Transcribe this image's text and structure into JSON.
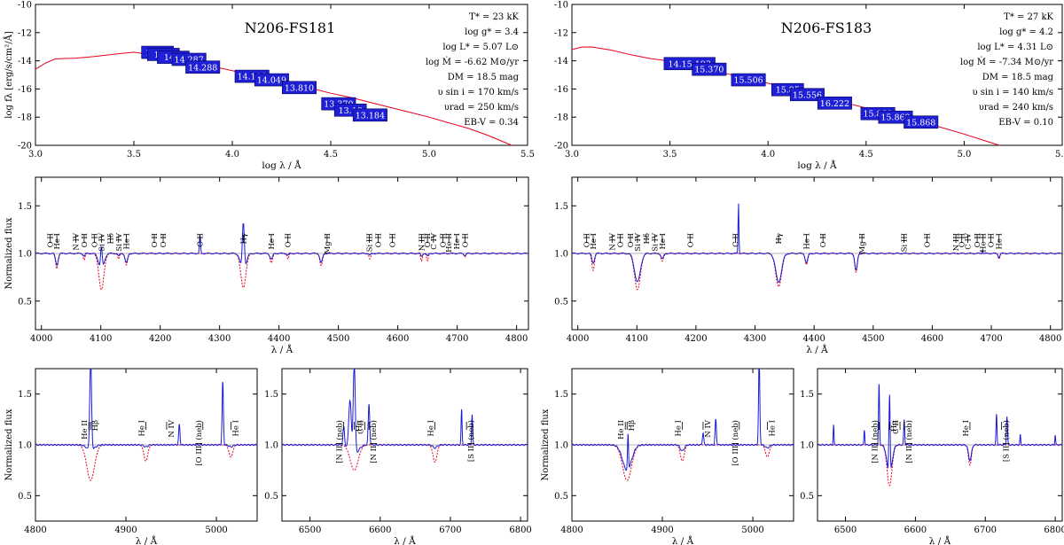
{
  "chart_data": [
    {
      "type": "line",
      "title": "N206-FS181",
      "xlabel": "log λ / Å",
      "ylabel": "log fλ [erg/s/cm²/Å]",
      "xlim": [
        3.0,
        5.5
      ],
      "ylim": [
        -20,
        -10
      ],
      "xticks": [
        "3.0",
        "3.5",
        "4.0",
        "4.5",
        "5.0",
        "5.5"
      ],
      "yticks": [
        "-10",
        "-12",
        "-14",
        "-16",
        "-18",
        "-20"
      ],
      "params": [
        "T* = 23 kK",
        "log g* = 3.4",
        "log L* = 5.07 L⊙",
        "log Ṁ = -6.62 M⊙/yr",
        "DM = 18.5 mag",
        "υ sin i = 170 km/s",
        "υrad = 250 km/s",
        "EB-V = 0.34"
      ],
      "series": [
        {
          "name": "",
          "color": "#e8001c",
          "x": [
            3.0,
            3.05,
            3.1,
            3.15,
            3.2,
            3.3,
            3.4,
            3.5,
            3.6,
            3.7,
            3.8,
            3.9,
            4.0,
            4.1,
            4.2,
            4.3,
            4.4,
            4.5,
            4.6,
            4.7,
            4.8,
            4.9,
            5.0,
            5.1,
            5.2,
            5.3,
            5.42
          ],
          "y": [
            -14.6,
            -14.3,
            -14.0,
            -13.85,
            -13.7,
            -13.55,
            -13.5,
            -13.5,
            -13.6,
            -13.85,
            -14.1,
            -14.4,
            -14.7,
            -15.0,
            -15.3,
            -15.65,
            -15.95,
            -16.3,
            -16.6,
            -16.95,
            -17.3,
            -17.65,
            -18.0,
            -18.4,
            -18.8,
            -19.3,
            -20.0
          ]
        }
      ],
      "photometry": [
        {
          "x": 3.62,
          "y": -13.4,
          "label": "13.14"
        },
        {
          "x": 3.65,
          "y": -13.55,
          "label": "14.4"
        },
        {
          "x": 3.7,
          "y": -13.75,
          "label": "14.2"
        },
        {
          "x": 3.78,
          "y": -13.9,
          "label": "14.287"
        },
        {
          "x": 3.85,
          "y": -14.45,
          "label": "14.288"
        },
        {
          "x": 4.1,
          "y": -15.1,
          "label": "14.108"
        },
        {
          "x": 4.2,
          "y": -15.35,
          "label": "14.049"
        },
        {
          "x": 4.34,
          "y": -15.9,
          "label": "13.810"
        },
        {
          "x": 4.54,
          "y": -17.05,
          "label": "13.370"
        },
        {
          "x": 4.6,
          "y": -17.5,
          "label": "13.18"
        },
        {
          "x": 4.7,
          "y": -17.85,
          "label": "13.184"
        }
      ]
    },
    {
      "type": "line",
      "title": "N206-FS183",
      "xlabel": "log λ / Å",
      "ylabel": "",
      "xlim": [
        3.0,
        5.5
      ],
      "ylim": [
        -20,
        -10
      ],
      "xticks": [
        "3.0",
        "3.5",
        "4.0",
        "4.5",
        "5.0",
        "5.5"
      ],
      "yticks": [
        "-10",
        "-12",
        "-14",
        "-16",
        "-18",
        "-20"
      ],
      "params": [
        "T* = 27 kK",
        "log g* = 4.2",
        "log L* = 4.31 L⊙",
        "log Ṁ = -7.34 M⊙/yr",
        "DM = 18.5 mag",
        "υ sin i = 140 km/s",
        "υrad = 240 km/s",
        "EB-V = 0.10"
      ],
      "series": [
        {
          "name": "",
          "color": "#e8001c",
          "x": [
            3.0,
            3.05,
            3.1,
            3.2,
            3.3,
            3.4,
            3.5,
            3.6,
            3.7,
            3.8,
            3.9,
            4.0,
            4.1,
            4.2,
            4.3,
            4.4,
            4.5,
            4.6,
            4.7,
            4.8,
            4.9,
            5.0,
            5.1,
            5.18
          ],
          "y": [
            -13.2,
            -13.15,
            -13.15,
            -13.25,
            -13.45,
            -13.7,
            -14.0,
            -14.3,
            -14.6,
            -14.95,
            -15.3,
            -15.6,
            -15.95,
            -16.3,
            -16.65,
            -17.0,
            -17.35,
            -17.7,
            -18.05,
            -18.4,
            -18.8,
            -19.2,
            -19.65,
            -20.0
          ]
        }
      ],
      "photometry": [
        {
          "x": 3.6,
          "y": -14.2,
          "label": "14.15.193"
        },
        {
          "x": 3.7,
          "y": -14.6,
          "label": "15.370"
        },
        {
          "x": 3.9,
          "y": -15.35,
          "label": "15.506"
        },
        {
          "x": 4.1,
          "y": -16.05,
          "label": "15.85"
        },
        {
          "x": 4.2,
          "y": -16.4,
          "label": "15.556"
        },
        {
          "x": 4.34,
          "y": -17.0,
          "label": "16.222"
        },
        {
          "x": 4.56,
          "y": -17.75,
          "label": "15.853"
        },
        {
          "x": 4.65,
          "y": -18.0,
          "label": "15.869"
        },
        {
          "x": 4.78,
          "y": -18.35,
          "label": "15.868"
        }
      ]
    },
    {
      "type": "line",
      "xlabel": "λ / Å",
      "ylabel": "Normalized flux",
      "xlim": [
        3990,
        4820
      ],
      "ylim": [
        0.2,
        1.8
      ],
      "xticks": [
        "4000",
        "4100",
        "4200",
        "4300",
        "4400",
        "4500",
        "4600",
        "4700",
        "4800"
      ],
      "yticks": [
        "0.5",
        "1.0",
        "1.5"
      ],
      "lines": [
        {
          "x": 4015,
          "label": "O II"
        },
        {
          "x": 4026,
          "label": "He I"
        },
        {
          "x": 4058,
          "label": "N IV"
        },
        {
          "x": 4072,
          "label": "O II"
        },
        {
          "x": 4089,
          "label": "O II"
        },
        {
          "x": 4101,
          "label": "Si IV"
        },
        {
          "x": 4116,
          "label": "Hδ"
        },
        {
          "x": 4130,
          "label": "Si IV"
        },
        {
          "x": 4143,
          "label": "He I"
        },
        {
          "x": 4190,
          "label": "O II"
        },
        {
          "x": 4205,
          "label": "O II"
        },
        {
          "x": 4267,
          "label": "C II"
        },
        {
          "x": 4340,
          "label": "Hγ"
        },
        {
          "x": 4387,
          "label": "He I"
        },
        {
          "x": 4415,
          "label": "O II"
        },
        {
          "x": 4481,
          "label": "Mg II"
        },
        {
          "x": 4552,
          "label": "Si III"
        },
        {
          "x": 4567,
          "label": "O II"
        },
        {
          "x": 4591,
          "label": "O II"
        },
        {
          "x": 4640,
          "label": "N III"
        },
        {
          "x": 4650,
          "label": "O II"
        },
        {
          "x": 4660,
          "label": "C IV"
        },
        {
          "x": 4676,
          "label": "O II"
        },
        {
          "x": 4686,
          "label": "He II"
        },
        {
          "x": 4699,
          "label": "He I"
        },
        {
          "x": 4713,
          "label": "O II"
        }
      ],
      "absorption": [
        {
          "x": 4026,
          "w": 3,
          "obs": 0.12,
          "mod": 0.16
        },
        {
          "x": 4072,
          "w": 2,
          "obs": 0.03,
          "mod": 0.07
        },
        {
          "x": 4101,
          "w": 6,
          "obs": 0.18,
          "mod": 0.38
        },
        {
          "x": 4130,
          "w": 2,
          "obs": 0.03,
          "mod": 0.06
        },
        {
          "x": 4143,
          "w": 3,
          "obs": 0.1,
          "mod": 0.12
        },
        {
          "x": 4340,
          "w": 6,
          "obs": 0.22,
          "mod": 0.36
        },
        {
          "x": 4387,
          "w": 3,
          "obs": 0.06,
          "mod": 0.1
        },
        {
          "x": 4415,
          "w": 2,
          "obs": 0.02,
          "mod": 0.06
        },
        {
          "x": 4471,
          "w": 3,
          "obs": 0.1,
          "mod": 0.13
        },
        {
          "x": 4553,
          "w": 2,
          "obs": 0.02,
          "mod": 0.06
        },
        {
          "x": 4640,
          "w": 2,
          "obs": 0.03,
          "mod": 0.08
        },
        {
          "x": 4650,
          "w": 2,
          "obs": 0.03,
          "mod": 0.08
        },
        {
          "x": 4713,
          "w": 2,
          "obs": 0.02,
          "mod": 0.04
        }
      ],
      "emission": [
        {
          "x": 4267,
          "w": 1.2,
          "h": 0.2
        },
        {
          "x": 4340,
          "w": 2.5,
          "h": 0.55
        },
        {
          "x": 4101,
          "w": 2,
          "h": 0.25
        }
      ]
    },
    {
      "type": "line",
      "xlabel": "λ / Å",
      "ylabel": "",
      "xlim": [
        3990,
        4820
      ],
      "ylim": [
        0.2,
        1.8
      ],
      "xticks": [
        "4000",
        "4100",
        "4200",
        "4300",
        "4400",
        "4500",
        "4600",
        "4700",
        "4800"
      ],
      "yticks": [
        "0.5",
        "1.0",
        "1.5"
      ],
      "lines": [
        {
          "x": 4015,
          "label": "O II"
        },
        {
          "x": 4026,
          "label": "He I"
        },
        {
          "x": 4058,
          "label": "N IV"
        },
        {
          "x": 4072,
          "label": "O II"
        },
        {
          "x": 4089,
          "label": "O II"
        },
        {
          "x": 4101,
          "label": "Si IV"
        },
        {
          "x": 4116,
          "label": "Hδ"
        },
        {
          "x": 4130,
          "label": "Si IV"
        },
        {
          "x": 4143,
          "label": "He I"
        },
        {
          "x": 4190,
          "label": "O II"
        },
        {
          "x": 4267,
          "label": "C II"
        },
        {
          "x": 4340,
          "label": "Hγ"
        },
        {
          "x": 4387,
          "label": "He I"
        },
        {
          "x": 4415,
          "label": "O II"
        },
        {
          "x": 4481,
          "label": "Mg II"
        },
        {
          "x": 4552,
          "label": "Si III"
        },
        {
          "x": 4591,
          "label": "O II"
        },
        {
          "x": 4640,
          "label": "N III"
        },
        {
          "x": 4650,
          "label": "O II"
        },
        {
          "x": 4660,
          "label": "C IV"
        },
        {
          "x": 4676,
          "label": "O II"
        },
        {
          "x": 4686,
          "label": "He II"
        },
        {
          "x": 4699,
          "label": "O II"
        },
        {
          "x": 4713,
          "label": "He I"
        }
      ],
      "absorption": [
        {
          "x": 4026,
          "w": 3,
          "obs": 0.1,
          "mod": 0.18
        },
        {
          "x": 4101,
          "w": 7,
          "obs": 0.3,
          "mod": 0.38
        },
        {
          "x": 4143,
          "w": 3,
          "obs": 0.06,
          "mod": 0.08
        },
        {
          "x": 4340,
          "w": 7,
          "obs": 0.3,
          "mod": 0.35
        },
        {
          "x": 4387,
          "w": 3,
          "obs": 0.1,
          "mod": 0.12
        },
        {
          "x": 4471,
          "w": 3,
          "obs": 0.18,
          "mod": 0.2
        },
        {
          "x": 4713,
          "w": 2,
          "obs": 0.04,
          "mod": 0.06
        }
      ],
      "emission": [
        {
          "x": 4272,
          "w": 1,
          "h": 0.55
        },
        {
          "x": 4685,
          "w": 1,
          "h": 0.05
        }
      ]
    },
    {
      "type": "line",
      "xlabel": "λ / Å",
      "ylabel": "Normalized flux",
      "xlim": [
        4800,
        5045
      ],
      "ylim": [
        0.25,
        1.75
      ],
      "xticks": [
        "4800",
        "4900",
        "5000"
      ],
      "yticks": [
        "0.5",
        "1.0",
        "1.5"
      ],
      "lines": [
        {
          "x": 4859,
          "label": "He II"
        },
        {
          "x": 4861,
          "label": "Hβ"
        },
        {
          "x": 4922,
          "label": "He I"
        },
        {
          "x": 4945,
          "label": "N IV"
        },
        {
          "x": 4985,
          "label": "[O III] (neb)"
        },
        {
          "x": 5016,
          "label": "He I"
        }
      ],
      "absorption": [
        {
          "x": 4861,
          "w": 6,
          "obs": 0.05,
          "mod": 0.35
        },
        {
          "x": 4922,
          "w": 3,
          "obs": 0.02,
          "mod": 0.16
        },
        {
          "x": 5016,
          "w": 3,
          "obs": 0.02,
          "mod": 0.12
        }
      ],
      "emission": [
        {
          "x": 4861,
          "w": 1.4,
          "h": 0.9
        },
        {
          "x": 4959,
          "w": 1,
          "h": 0.2
        },
        {
          "x": 5007,
          "w": 1,
          "h": 0.62
        }
      ]
    },
    {
      "type": "line",
      "xlabel": "λ / Å",
      "ylabel": "",
      "xlim": [
        6460,
        6810
      ],
      "ylim": [
        0.25,
        1.75
      ],
      "xticks": [
        "6500",
        "6600",
        "6700",
        "6800"
      ],
      "yticks": [
        "0.5",
        "1.0",
        "1.5"
      ],
      "lines": [
        {
          "x": 6548,
          "label": "[N II] (neb)"
        },
        {
          "x": 6563,
          "label": "Hα"
        },
        {
          "x": 6578,
          "label": "C II"
        },
        {
          "x": 6584,
          "label": "[N II] (neb)"
        },
        {
          "x": 6678,
          "label": "He I"
        },
        {
          "x": 6723,
          "label": "[S II] (neb)"
        }
      ],
      "absorption": [
        {
          "x": 6563,
          "w": 8,
          "obs": 0.1,
          "mod": 0.25
        },
        {
          "x": 6678,
          "w": 4,
          "obs": 0.03,
          "mod": 0.17
        }
      ],
      "emission": [
        {
          "x": 6548,
          "w": 1.5,
          "h": 0.18
        },
        {
          "x": 6557,
          "w": 2.5,
          "h": 0.5
        },
        {
          "x": 6563,
          "w": 2,
          "h": 0.9
        },
        {
          "x": 6584,
          "w": 1.5,
          "h": 0.4
        },
        {
          "x": 6716,
          "w": 1,
          "h": 0.35
        },
        {
          "x": 6731,
          "w": 1,
          "h": 0.3
        }
      ]
    },
    {
      "type": "line",
      "xlabel": "λ / Å",
      "ylabel": "Normalized flux",
      "xlim": [
        4800,
        5045
      ],
      "ylim": [
        0.25,
        1.75
      ],
      "xticks": [
        "4800",
        "4900",
        "5000"
      ],
      "yticks": [
        "0.5",
        "1.0",
        "1.5"
      ],
      "lines": [
        {
          "x": 4859,
          "label": "He II"
        },
        {
          "x": 4861,
          "label": "Hβ"
        },
        {
          "x": 4922,
          "label": "He I"
        },
        {
          "x": 4945,
          "label": "N IV"
        },
        {
          "x": 4985,
          "label": "[O III] (neb)"
        },
        {
          "x": 5016,
          "label": "He I"
        }
      ],
      "absorption": [
        {
          "x": 4861,
          "w": 7,
          "obs": 0.25,
          "mod": 0.35
        },
        {
          "x": 4922,
          "w": 3,
          "obs": 0.06,
          "mod": 0.16
        },
        {
          "x": 5016,
          "w": 3,
          "obs": 0.03,
          "mod": 0.12
        }
      ],
      "emission": [
        {
          "x": 4862,
          "w": 0.8,
          "h": 0.35
        },
        {
          "x": 4945,
          "w": 1,
          "h": 0.12
        },
        {
          "x": 4959,
          "w": 1,
          "h": 0.25
        },
        {
          "x": 5007,
          "w": 1,
          "h": 0.85
        }
      ]
    },
    {
      "type": "line",
      "xlabel": "λ / Å",
      "ylabel": "",
      "xlim": [
        6460,
        6810
      ],
      "ylim": [
        0.25,
        1.75
      ],
      "xticks": [
        "6500",
        "6600",
        "6700",
        "6800"
      ],
      "yticks": [
        "0.5",
        "1.0",
        "1.5"
      ],
      "lines": [
        {
          "x": 6548,
          "label": "[N II] (neb)"
        },
        {
          "x": 6563,
          "label": "Hα"
        },
        {
          "x": 6578,
          "label": "C II"
        },
        {
          "x": 6584,
          "label": "[N II] (neb)"
        },
        {
          "x": 6678,
          "label": "He I"
        },
        {
          "x": 6723,
          "label": "[S II] (neb)"
        }
      ],
      "absorption": [
        {
          "x": 6563,
          "w": 5,
          "obs": 0.3,
          "mod": 0.4
        },
        {
          "x": 6678,
          "w": 3,
          "obs": 0.15,
          "mod": 0.2
        }
      ],
      "emission": [
        {
          "x": 6483,
          "w": 0.8,
          "h": 0.2
        },
        {
          "x": 6527,
          "w": 0.8,
          "h": 0.15
        },
        {
          "x": 6548,
          "w": 1,
          "h": 0.6
        },
        {
          "x": 6563,
          "w": 1.2,
          "h": 0.8
        },
        {
          "x": 6584,
          "w": 1,
          "h": 0.25
        },
        {
          "x": 6716,
          "w": 1,
          "h": 0.3
        },
        {
          "x": 6731,
          "w": 1,
          "h": 0.28
        },
        {
          "x": 6750,
          "w": 0.8,
          "h": 0.1
        },
        {
          "x": 6800,
          "w": 0.8,
          "h": 0.1
        }
      ]
    }
  ]
}
